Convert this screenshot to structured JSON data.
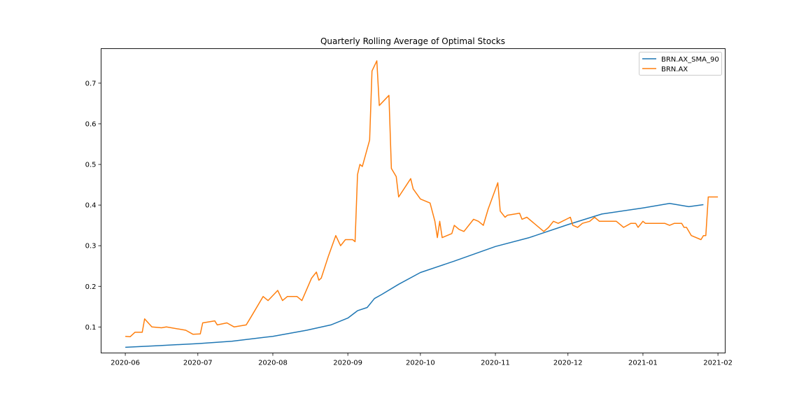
{
  "chart_data": {
    "type": "line",
    "title": "Quarterly Rolling Average of Optimal Stocks",
    "xlabel": "",
    "ylabel": "",
    "grid": false,
    "legend_position": "top-right",
    "x_ticks": [
      "2020-06",
      "2020-07",
      "2020-08",
      "2020-09",
      "2020-10",
      "2020-11",
      "2020-12",
      "2021-01",
      "2021-02"
    ],
    "y_ticks": [
      "0.1",
      "0.2",
      "0.3",
      "0.4",
      "0.5",
      "0.6",
      "0.7"
    ],
    "xlim": [
      "2020-05-22",
      "2021-02-04"
    ],
    "ylim": [
      0.036,
      0.785
    ],
    "series": [
      {
        "name": "BRN.AX_SMA_90",
        "color": "#1f77b4",
        "points": [
          [
            "2020-06-01",
            0.05
          ],
          [
            "2020-06-15",
            0.054
          ],
          [
            "2020-07-01",
            0.059
          ],
          [
            "2020-07-15",
            0.065
          ],
          [
            "2020-08-01",
            0.077
          ],
          [
            "2020-08-15",
            0.092
          ],
          [
            "2020-08-25",
            0.105
          ],
          [
            "2020-09-01",
            0.122
          ],
          [
            "2020-09-05",
            0.14
          ],
          [
            "2020-09-09",
            0.148
          ],
          [
            "2020-09-12",
            0.17
          ],
          [
            "2020-09-15",
            0.18
          ],
          [
            "2020-09-22",
            0.205
          ],
          [
            "2020-10-01",
            0.234
          ],
          [
            "2020-10-15",
            0.262
          ],
          [
            "2020-11-01",
            0.298
          ],
          [
            "2020-11-15",
            0.32
          ],
          [
            "2020-12-01",
            0.352
          ],
          [
            "2020-12-15",
            0.378
          ],
          [
            "2021-01-01",
            0.393
          ],
          [
            "2021-01-12",
            0.404
          ],
          [
            "2021-01-20",
            0.396
          ],
          [
            "2021-01-26",
            0.401
          ]
        ]
      },
      {
        "name": "BRN.AX",
        "color": "#ff7f0e",
        "points": [
          [
            "2020-06-01",
            0.077
          ],
          [
            "2020-06-03",
            0.076
          ],
          [
            "2020-06-05",
            0.087
          ],
          [
            "2020-06-08",
            0.087
          ],
          [
            "2020-06-09",
            0.12
          ],
          [
            "2020-06-12",
            0.1
          ],
          [
            "2020-06-16",
            0.098
          ],
          [
            "2020-06-18",
            0.1
          ],
          [
            "2020-06-26",
            0.092
          ],
          [
            "2020-06-29",
            0.082
          ],
          [
            "2020-07-02",
            0.083
          ],
          [
            "2020-07-03",
            0.11
          ],
          [
            "2020-07-08",
            0.115
          ],
          [
            "2020-07-09",
            0.105
          ],
          [
            "2020-07-13",
            0.11
          ],
          [
            "2020-07-16",
            0.1
          ],
          [
            "2020-07-21",
            0.105
          ],
          [
            "2020-07-23",
            0.125
          ],
          [
            "2020-07-28",
            0.175
          ],
          [
            "2020-07-30",
            0.165
          ],
          [
            "2020-08-03",
            0.19
          ],
          [
            "2020-08-05",
            0.165
          ],
          [
            "2020-08-07",
            0.175
          ],
          [
            "2020-08-11",
            0.175
          ],
          [
            "2020-08-13",
            0.165
          ],
          [
            "2020-08-17",
            0.22
          ],
          [
            "2020-08-19",
            0.235
          ],
          [
            "2020-08-20",
            0.215
          ],
          [
            "2020-08-21",
            0.22
          ],
          [
            "2020-08-24",
            0.275
          ],
          [
            "2020-08-27",
            0.325
          ],
          [
            "2020-08-29",
            0.3
          ],
          [
            "2020-08-31",
            0.315
          ],
          [
            "2020-09-03",
            0.315
          ],
          [
            "2020-09-04",
            0.31
          ],
          [
            "2020-09-05",
            0.475
          ],
          [
            "2020-09-06",
            0.5
          ],
          [
            "2020-09-07",
            0.495
          ],
          [
            "2020-09-10",
            0.56
          ],
          [
            "2020-09-11",
            0.73
          ],
          [
            "2020-09-13",
            0.755
          ],
          [
            "2020-09-14",
            0.645
          ],
          [
            "2020-09-18",
            0.67
          ],
          [
            "2020-09-19",
            0.49
          ],
          [
            "2020-09-21",
            0.47
          ],
          [
            "2020-09-22",
            0.42
          ],
          [
            "2020-09-27",
            0.465
          ],
          [
            "2020-09-28",
            0.44
          ],
          [
            "2020-10-01",
            0.415
          ],
          [
            "2020-10-05",
            0.405
          ],
          [
            "2020-10-07",
            0.36
          ],
          [
            "2020-10-08",
            0.32
          ],
          [
            "2020-10-09",
            0.36
          ],
          [
            "2020-10-10",
            0.32
          ],
          [
            "2020-10-14",
            0.33
          ],
          [
            "2020-10-15",
            0.35
          ],
          [
            "2020-10-17",
            0.34
          ],
          [
            "2020-10-19",
            0.335
          ],
          [
            "2020-10-23",
            0.365
          ],
          [
            "2020-10-25",
            0.36
          ],
          [
            "2020-10-27",
            0.35
          ],
          [
            "2020-10-29",
            0.39
          ],
          [
            "2020-11-02",
            0.455
          ],
          [
            "2020-11-03",
            0.385
          ],
          [
            "2020-11-05",
            0.37
          ],
          [
            "2020-11-06",
            0.375
          ],
          [
            "2020-11-11",
            0.38
          ],
          [
            "2020-11-12",
            0.365
          ],
          [
            "2020-11-14",
            0.37
          ],
          [
            "2020-11-21",
            0.335
          ],
          [
            "2020-11-23",
            0.345
          ],
          [
            "2020-11-25",
            0.36
          ],
          [
            "2020-11-27",
            0.355
          ],
          [
            "2020-12-02",
            0.37
          ],
          [
            "2020-12-03",
            0.35
          ],
          [
            "2020-12-05",
            0.345
          ],
          [
            "2020-12-07",
            0.355
          ],
          [
            "2020-12-10",
            0.36
          ],
          [
            "2020-12-12",
            0.37
          ],
          [
            "2020-12-14",
            0.36
          ],
          [
            "2020-12-21",
            0.36
          ],
          [
            "2020-12-24",
            0.345
          ],
          [
            "2020-12-27",
            0.355
          ],
          [
            "2020-12-29",
            0.355
          ],
          [
            "2020-12-30",
            0.345
          ],
          [
            "2021-01-01",
            0.36
          ],
          [
            "2021-01-02",
            0.355
          ],
          [
            "2021-01-10",
            0.355
          ],
          [
            "2021-01-12",
            0.35
          ],
          [
            "2021-01-14",
            0.355
          ],
          [
            "2021-01-17",
            0.355
          ],
          [
            "2021-01-18",
            0.345
          ],
          [
            "2021-01-19",
            0.345
          ],
          [
            "2021-01-21",
            0.325
          ],
          [
            "2021-01-25",
            0.315
          ],
          [
            "2021-01-26",
            0.325
          ],
          [
            "2021-01-27",
            0.325
          ],
          [
            "2021-01-28",
            0.42
          ],
          [
            "2021-01-31",
            0.42
          ],
          [
            "2021-02-01",
            0.42
          ]
        ]
      }
    ]
  }
}
